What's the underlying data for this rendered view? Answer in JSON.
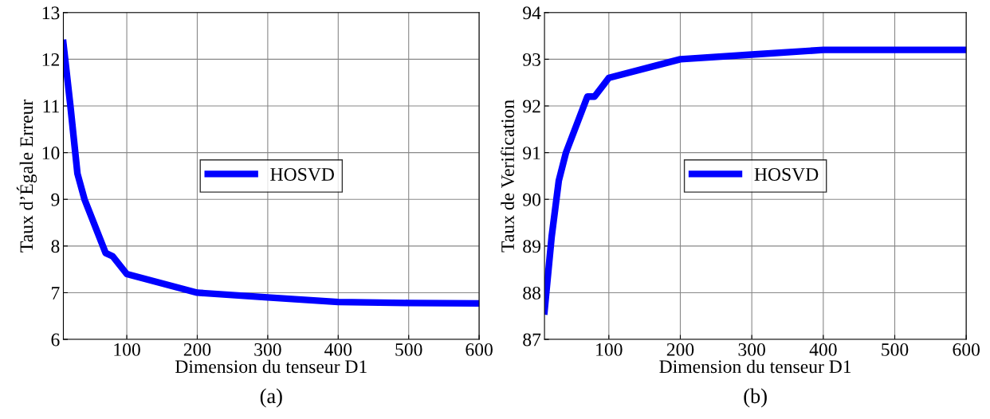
{
  "chart_data": [
    {
      "type": "line",
      "xlabel": "Dimension du tenseur D1",
      "ylabel": "Taux d’Égale Erreur",
      "x": [
        10,
        20,
        30,
        40,
        70,
        80,
        100,
        200,
        300,
        400,
        500,
        600
      ],
      "series": [
        {
          "name": "HOSVD",
          "color": "#0000ff",
          "values": [
            12.35,
            11.0,
            9.55,
            9.0,
            7.85,
            7.78,
            7.4,
            7.0,
            6.9,
            6.8,
            6.78,
            6.77
          ]
        }
      ],
      "xlim": [
        10,
        600
      ],
      "xticks": [
        100,
        200,
        300,
        400,
        500,
        600
      ],
      "ylim": [
        6,
        13
      ],
      "yticks": [
        6,
        7,
        8,
        9,
        10,
        11,
        12,
        13
      ],
      "grid": true,
      "legend": "center",
      "annotations": [
        "(a)"
      ]
    },
    {
      "type": "line",
      "xlabel": "Dimension du tenseur D1",
      "ylabel": "Taux de Verification",
      "x": [
        10,
        20,
        30,
        40,
        70,
        80,
        100,
        200,
        300,
        400,
        500,
        600
      ],
      "series": [
        {
          "name": "HOSVD",
          "color": "#0000ff",
          "values": [
            87.6,
            89.2,
            90.4,
            91.0,
            92.2,
            92.2,
            92.6,
            93.0,
            93.1,
            93.2,
            93.2,
            93.2
          ]
        }
      ],
      "xlim": [
        10,
        600
      ],
      "xticks": [
        100,
        200,
        300,
        400,
        500,
        600
      ],
      "ylim": [
        87,
        94
      ],
      "yticks": [
        87,
        88,
        89,
        90,
        91,
        92,
        93,
        94
      ],
      "grid": true,
      "legend": "center",
      "annotations": [
        "(b)"
      ]
    }
  ]
}
